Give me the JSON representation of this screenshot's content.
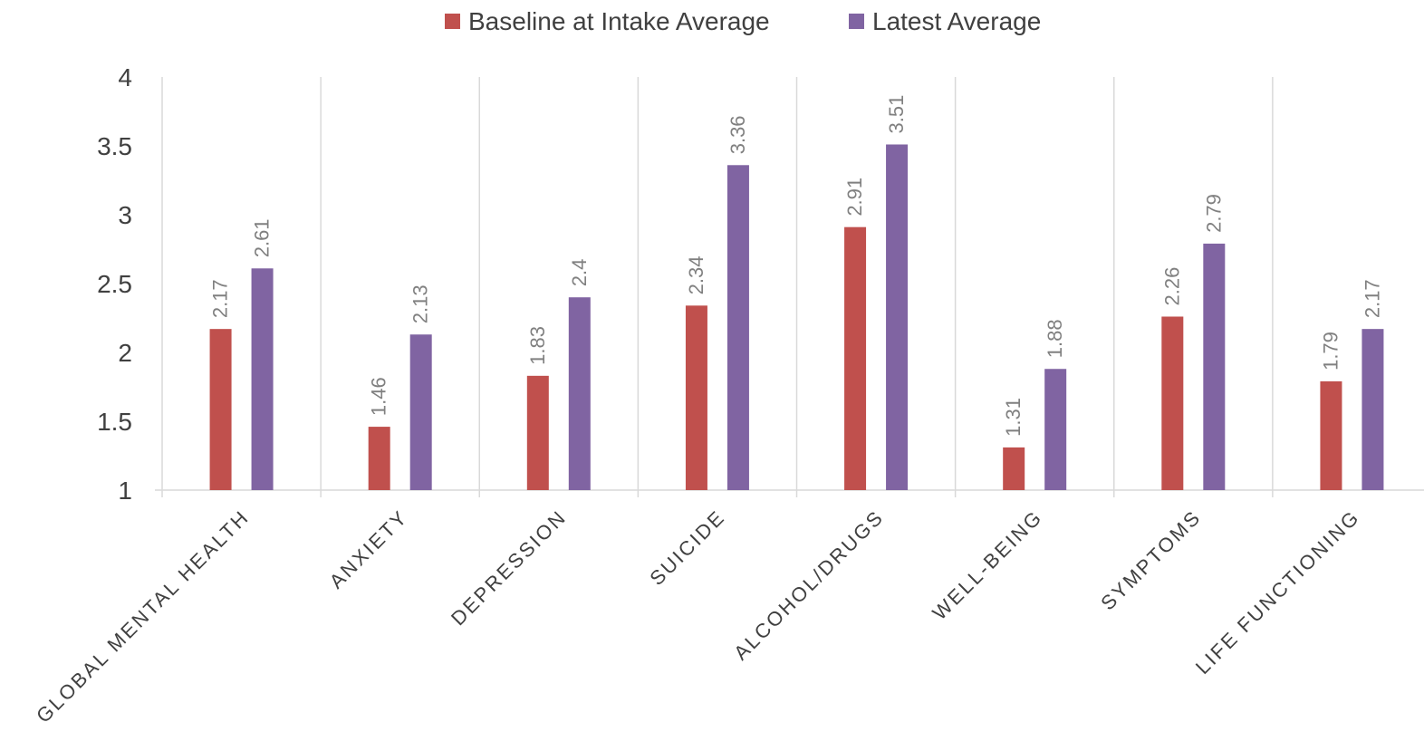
{
  "chart_data": {
    "type": "bar",
    "categories": [
      "GLOBAL MENTAL HEALTH",
      "ANXIETY",
      "DEPRESSION",
      "SUICIDE",
      "ALCOHOL/DRUGS",
      "WELL-BEING",
      "SYMPTOMS",
      "LIFE FUNCTIONING"
    ],
    "series": [
      {
        "name": "Baseline at Intake Average",
        "color": "#c0504d",
        "values": [
          2.17,
          1.46,
          1.83,
          2.34,
          2.91,
          1.31,
          2.26,
          1.79
        ],
        "labels": [
          "2.17",
          "1.46",
          "1.83",
          "2.34",
          "2.91",
          "1.31",
          "2.26",
          "1.79"
        ]
      },
      {
        "name": "Latest Average",
        "color": "#8064a2",
        "values": [
          2.61,
          2.13,
          2.4,
          3.36,
          3.51,
          1.88,
          2.79,
          2.17
        ],
        "labels": [
          "2.61",
          "2.13",
          "2.4",
          "3.36",
          "3.51",
          "1.88",
          "2.79",
          "2.17"
        ]
      }
    ],
    "ylim": [
      1,
      4
    ],
    "yticks": [
      "1",
      "1.5",
      "2",
      "2.5",
      "3",
      "3.5",
      "4"
    ],
    "ytick_values": [
      1,
      1.5,
      2,
      2.5,
      3,
      3.5,
      4
    ],
    "grid": "vertical separators between categories",
    "legend_position": "top-center"
  }
}
